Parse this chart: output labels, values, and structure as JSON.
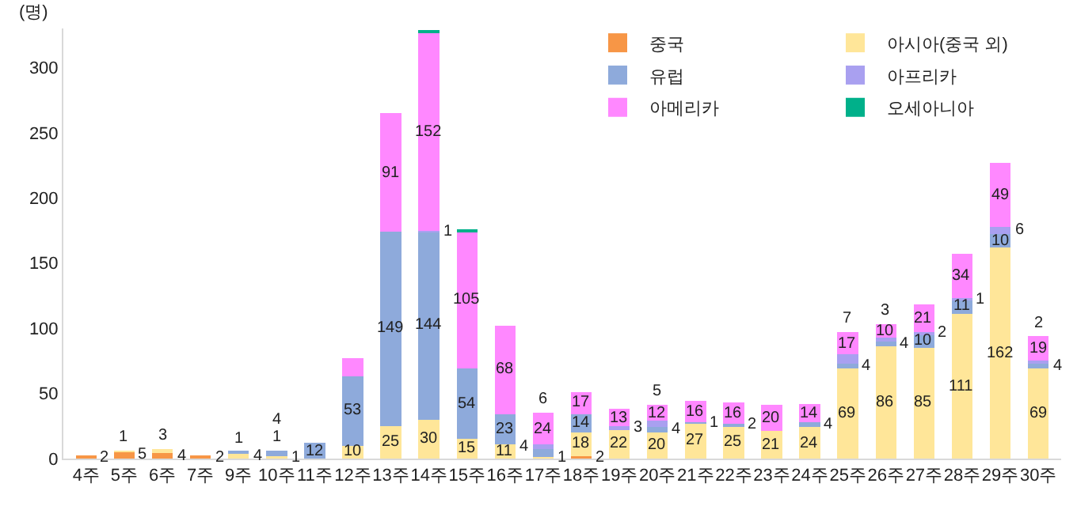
{
  "chart_data": {
    "type": "bar",
    "stacked": true,
    "ylabel": "(명)",
    "categories": [
      "4주",
      "5주",
      "6주",
      "7주",
      "9주",
      "10주",
      "11주",
      "12주",
      "13주",
      "14주",
      "15주",
      "16주",
      "17주",
      "18주",
      "19주",
      "20주",
      "21주",
      "22주",
      "23주",
      "24주",
      "25주",
      "26주",
      "27주",
      "28주",
      "29주",
      "30주"
    ],
    "series": [
      {
        "name": "중국",
        "color": "#f79646",
        "values": [
          2,
          5,
          4,
          2,
          null,
          1,
          null,
          null,
          null,
          null,
          null,
          null,
          null,
          2,
          null,
          null,
          null,
          null,
          null,
          null,
          null,
          null,
          null,
          null,
          null,
          null
        ],
        "value_labels": [
          "2",
          "5",
          "4",
          "2",
          null,
          "1",
          null,
          null,
          null,
          null,
          null,
          null,
          null,
          "2",
          null,
          null,
          null,
          null,
          null,
          null,
          null,
          null,
          null,
          null,
          null,
          null
        ]
      },
      {
        "name": "아시아(중국 외)",
        "color": "#ffe699",
        "values": [
          null,
          1,
          3,
          null,
          4,
          1,
          null,
          10,
          25,
          30,
          15,
          11,
          1,
          18,
          22,
          20,
          27,
          25,
          21,
          24,
          69,
          86,
          85,
          111,
          162,
          69
        ],
        "value_labels": [
          null,
          "1",
          "3",
          null,
          "4",
          "1",
          null,
          "10",
          "25",
          "30",
          "15",
          "11",
          "1",
          "18",
          "22",
          "20",
          "27",
          "25",
          "21",
          "24",
          "69",
          "86",
          "85",
          "111",
          "162",
          "69"
        ]
      },
      {
        "name": "유럽",
        "color": "#8eaadb",
        "values": [
          null,
          null,
          null,
          null,
          1,
          4,
          12,
          53,
          149,
          144,
          54,
          23,
          6,
          14,
          null,
          4,
          1,
          2,
          null,
          4,
          4,
          4,
          10,
          11,
          10,
          4
        ],
        "value_labels": [
          null,
          null,
          null,
          null,
          "1",
          "4",
          "12",
          "53",
          "149",
          "144",
          "54",
          "23",
          "6",
          "14",
          null,
          "4",
          "1",
          "2",
          null,
          "4",
          "4",
          "4",
          "10",
          "11",
          "10",
          "4"
        ]
      },
      {
        "name": "아프리카",
        "color": "#a9a0f0",
        "values": [
          null,
          null,
          null,
          null,
          null,
          null,
          null,
          null,
          null,
          1,
          null,
          null,
          4,
          null,
          3,
          5,
          null,
          null,
          null,
          null,
          7,
          3,
          2,
          1,
          6,
          2
        ],
        "value_labels": [
          null,
          null,
          null,
          null,
          null,
          null,
          null,
          null,
          null,
          "1",
          null,
          null,
          "4",
          null,
          "3",
          "5",
          null,
          null,
          null,
          null,
          "7",
          "3",
          "2",
          "1",
          "6",
          "2"
        ]
      },
      {
        "name": "아메리카",
        "color": "#ff88ff",
        "values": [
          null,
          null,
          null,
          null,
          null,
          null,
          null,
          14,
          91,
          152,
          105,
          68,
          24,
          17,
          13,
          12,
          16,
          16,
          20,
          14,
          17,
          10,
          21,
          34,
          49,
          19
        ],
        "value_labels": [
          null,
          null,
          null,
          null,
          null,
          null,
          null,
          null,
          "91",
          "152",
          "105",
          "68",
          "24",
          "17",
          "13",
          "12",
          "16",
          "16",
          "20",
          "14",
          "17",
          "10",
          "21",
          "34",
          "49",
          "19"
        ]
      },
      {
        "name": "오세아니아",
        "color": "#00b08a",
        "values": [
          null,
          null,
          null,
          null,
          null,
          null,
          null,
          null,
          null,
          1,
          1,
          null,
          null,
          null,
          null,
          null,
          null,
          null,
          null,
          null,
          null,
          null,
          null,
          null,
          null,
          null
        ]
      }
    ],
    "ylim": [
      0,
      330
    ],
    "yticks": [
      0,
      50,
      100,
      150,
      200,
      250,
      300
    ],
    "grid": false,
    "legend": "top right"
  }
}
